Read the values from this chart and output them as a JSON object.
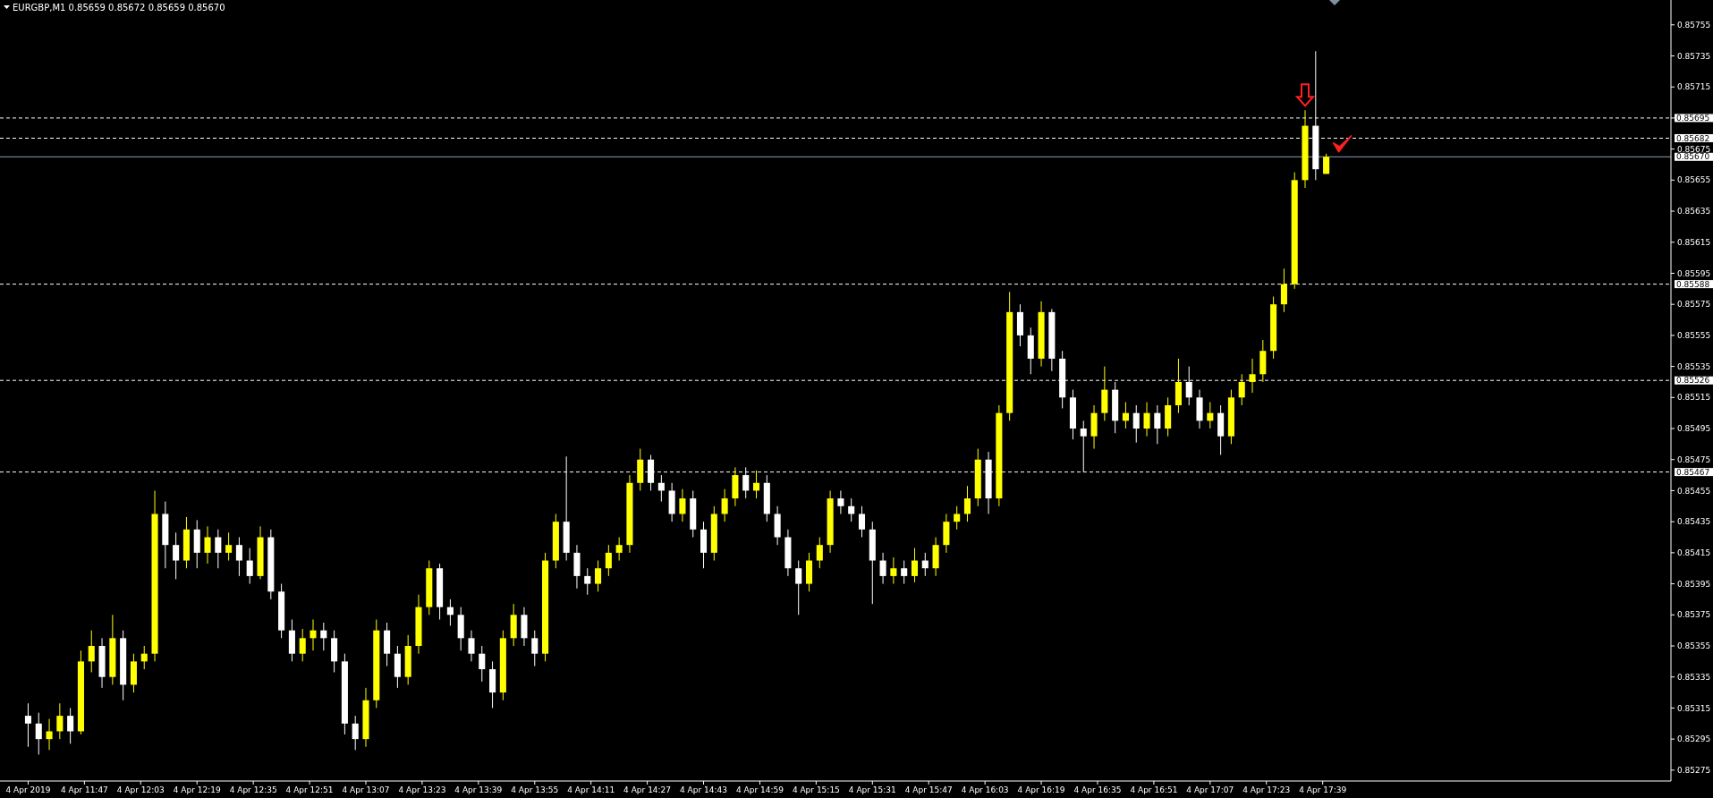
{
  "chart_data": {
    "type": "candlestick",
    "title": "EURGBP,M1 0.85659 0.85672 0.85659 0.85670",
    "x": [
      "2019-04-04T11:31",
      "2019-04-04T11:34",
      "2019-04-04T11:37",
      "2019-04-04T11:40",
      "2019-04-04T11:43",
      "2019-04-04T11:46",
      "2019-04-04T11:49",
      "2019-04-04T11:52",
      "2019-04-04T11:55",
      "2019-04-04T11:58",
      "2019-04-04T12:01",
      "2019-04-04T12:04",
      "2019-04-04T12:07",
      "2019-04-04T12:10",
      "2019-04-04T12:13",
      "2019-04-04T12:16",
      "2019-04-04T12:19",
      "2019-04-04T12:22",
      "2019-04-04T12:25",
      "2019-04-04T12:28",
      "2019-04-04T12:31",
      "2019-04-04T12:34",
      "2019-04-04T12:37",
      "2019-04-04T12:40",
      "2019-04-04T12:43",
      "2019-04-04T12:46",
      "2019-04-04T12:49",
      "2019-04-04T12:52",
      "2019-04-04T12:55",
      "2019-04-04T12:58",
      "2019-04-04T13:01",
      "2019-04-04T13:04",
      "2019-04-04T13:07",
      "2019-04-04T13:10",
      "2019-04-04T13:13",
      "2019-04-04T13:16",
      "2019-04-04T13:19",
      "2019-04-04T13:22",
      "2019-04-04T13:25",
      "2019-04-04T13:28",
      "2019-04-04T13:31",
      "2019-04-04T13:34",
      "2019-04-04T13:37",
      "2019-04-04T13:40",
      "2019-04-04T13:43",
      "2019-04-04T13:46",
      "2019-04-04T13:49",
      "2019-04-04T13:52",
      "2019-04-04T13:55",
      "2019-04-04T13:58",
      "2019-04-04T14:01",
      "2019-04-04T14:04",
      "2019-04-04T14:07",
      "2019-04-04T14:10",
      "2019-04-04T14:13",
      "2019-04-04T14:16",
      "2019-04-04T14:19",
      "2019-04-04T14:22",
      "2019-04-04T14:25",
      "2019-04-04T14:28",
      "2019-04-04T14:31",
      "2019-04-04T14:34",
      "2019-04-04T14:37",
      "2019-04-04T14:40",
      "2019-04-04T14:43",
      "2019-04-04T14:46",
      "2019-04-04T14:49",
      "2019-04-04T14:52",
      "2019-04-04T14:55",
      "2019-04-04T14:58",
      "2019-04-04T15:01",
      "2019-04-04T15:04",
      "2019-04-04T15:07",
      "2019-04-04T15:10",
      "2019-04-04T15:13",
      "2019-04-04T15:16",
      "2019-04-04T15:19",
      "2019-04-04T15:22",
      "2019-04-04T15:25",
      "2019-04-04T15:28",
      "2019-04-04T15:31",
      "2019-04-04T15:34",
      "2019-04-04T15:37",
      "2019-04-04T15:40",
      "2019-04-04T15:43",
      "2019-04-04T15:46",
      "2019-04-04T15:49",
      "2019-04-04T15:52",
      "2019-04-04T15:55",
      "2019-04-04T15:58",
      "2019-04-04T16:01",
      "2019-04-04T16:04",
      "2019-04-04T16:07",
      "2019-04-04T16:10",
      "2019-04-04T16:13",
      "2019-04-04T16:16",
      "2019-04-04T16:19",
      "2019-04-04T16:22",
      "2019-04-04T16:25",
      "2019-04-04T16:28",
      "2019-04-04T16:31",
      "2019-04-04T16:34",
      "2019-04-04T16:37",
      "2019-04-04T16:40",
      "2019-04-04T16:43",
      "2019-04-04T16:46",
      "2019-04-04T16:49",
      "2019-04-04T16:52",
      "2019-04-04T16:55",
      "2019-04-04T16:58",
      "2019-04-04T17:01",
      "2019-04-04T17:04",
      "2019-04-04T17:07",
      "2019-04-04T17:10",
      "2019-04-04T17:13",
      "2019-04-04T17:16",
      "2019-04-04T17:19",
      "2019-04-04T17:22",
      "2019-04-04T17:25",
      "2019-04-04T17:28",
      "2019-04-04T17:31",
      "2019-04-04T17:34",
      "2019-04-04T17:37",
      "2019-04-04T17:40"
    ],
    "ohlc": [
      [
        0.8531,
        0.85318,
        0.8529,
        0.85305
      ],
      [
        0.85305,
        0.85312,
        0.85285,
        0.85295
      ],
      [
        0.85295,
        0.85308,
        0.85288,
        0.853
      ],
      [
        0.853,
        0.85318,
        0.85295,
        0.8531
      ],
      [
        0.8531,
        0.85315,
        0.85292,
        0.853
      ],
      [
        0.853,
        0.85352,
        0.85298,
        0.85345
      ],
      [
        0.85345,
        0.85365,
        0.85338,
        0.85355
      ],
      [
        0.85355,
        0.8536,
        0.85328,
        0.85335
      ],
      [
        0.85335,
        0.85375,
        0.8533,
        0.8536
      ],
      [
        0.8536,
        0.85365,
        0.8532,
        0.8533
      ],
      [
        0.8533,
        0.8535,
        0.85325,
        0.85345
      ],
      [
        0.85345,
        0.85355,
        0.8534,
        0.8535
      ],
      [
        0.8535,
        0.85455,
        0.85345,
        0.8544
      ],
      [
        0.8544,
        0.85448,
        0.85405,
        0.8542
      ],
      [
        0.8542,
        0.85428,
        0.85398,
        0.8541
      ],
      [
        0.8541,
        0.85438,
        0.85405,
        0.8543
      ],
      [
        0.8543,
        0.85436,
        0.85405,
        0.85415
      ],
      [
        0.85415,
        0.85432,
        0.85408,
        0.85425
      ],
      [
        0.85425,
        0.8543,
        0.85405,
        0.85415
      ],
      [
        0.85415,
        0.85428,
        0.8541,
        0.8542
      ],
      [
        0.8542,
        0.85425,
        0.854,
        0.8541
      ],
      [
        0.8541,
        0.85418,
        0.85395,
        0.854
      ],
      [
        0.854,
        0.85432,
        0.85398,
        0.85425
      ],
      [
        0.85425,
        0.8543,
        0.85385,
        0.8539
      ],
      [
        0.8539,
        0.85395,
        0.8536,
        0.85365
      ],
      [
        0.85365,
        0.85372,
        0.85345,
        0.8535
      ],
      [
        0.8535,
        0.85366,
        0.85345,
        0.8536
      ],
      [
        0.8536,
        0.85372,
        0.85352,
        0.85365
      ],
      [
        0.85365,
        0.8537,
        0.85352,
        0.8536
      ],
      [
        0.8536,
        0.85365,
        0.85338,
        0.85345
      ],
      [
        0.85345,
        0.8535,
        0.85298,
        0.85305
      ],
      [
        0.85305,
        0.8531,
        0.85288,
        0.85295
      ],
      [
        0.85295,
        0.85328,
        0.8529,
        0.8532
      ],
      [
        0.8532,
        0.85372,
        0.85315,
        0.85365
      ],
      [
        0.85365,
        0.8537,
        0.85342,
        0.8535
      ],
      [
        0.8535,
        0.85355,
        0.85328,
        0.85335
      ],
      [
        0.85335,
        0.85362,
        0.8533,
        0.85355
      ],
      [
        0.85355,
        0.85388,
        0.8535,
        0.8538
      ],
      [
        0.8538,
        0.8541,
        0.85375,
        0.85405
      ],
      [
        0.85405,
        0.85408,
        0.85372,
        0.8538
      ],
      [
        0.8538,
        0.85385,
        0.85368,
        0.85375
      ],
      [
        0.85375,
        0.8538,
        0.85352,
        0.8536
      ],
      [
        0.8536,
        0.85365,
        0.85345,
        0.8535
      ],
      [
        0.8535,
        0.85355,
        0.85332,
        0.8534
      ],
      [
        0.8534,
        0.85345,
        0.85315,
        0.85325
      ],
      [
        0.85325,
        0.85365,
        0.8532,
        0.8536
      ],
      [
        0.8536,
        0.85382,
        0.85355,
        0.85375
      ],
      [
        0.85375,
        0.8538,
        0.85355,
        0.8536
      ],
      [
        0.8536,
        0.85365,
        0.85342,
        0.8535
      ],
      [
        0.8535,
        0.85415,
        0.85345,
        0.8541
      ],
      [
        0.8541,
        0.8544,
        0.85405,
        0.85435
      ],
      [
        0.85435,
        0.85477,
        0.8541,
        0.85415
      ],
      [
        0.85415,
        0.8542,
        0.85392,
        0.854
      ],
      [
        0.854,
        0.85405,
        0.85388,
        0.85395
      ],
      [
        0.85395,
        0.8541,
        0.8539,
        0.85405
      ],
      [
        0.85405,
        0.8542,
        0.854,
        0.85415
      ],
      [
        0.85415,
        0.85425,
        0.8541,
        0.8542
      ],
      [
        0.8542,
        0.85465,
        0.85415,
        0.8546
      ],
      [
        0.8546,
        0.85482,
        0.85455,
        0.85475
      ],
      [
        0.85475,
        0.85478,
        0.85455,
        0.8546
      ],
      [
        0.8546,
        0.85465,
        0.85448,
        0.85455
      ],
      [
        0.85455,
        0.8546,
        0.85435,
        0.8544
      ],
      [
        0.8544,
        0.85456,
        0.85435,
        0.8545
      ],
      [
        0.8545,
        0.85455,
        0.85425,
        0.8543
      ],
      [
        0.8543,
        0.85435,
        0.85405,
        0.85415
      ],
      [
        0.85415,
        0.85445,
        0.8541,
        0.8544
      ],
      [
        0.8544,
        0.85456,
        0.85435,
        0.8545
      ],
      [
        0.8545,
        0.8547,
        0.85445,
        0.85465
      ],
      [
        0.85465,
        0.8547,
        0.8545,
        0.85455
      ],
      [
        0.85455,
        0.85468,
        0.8545,
        0.8546
      ],
      [
        0.8546,
        0.85465,
        0.85435,
        0.8544
      ],
      [
        0.8544,
        0.85445,
        0.8542,
        0.85425
      ],
      [
        0.85425,
        0.8543,
        0.854,
        0.85405
      ],
      [
        0.85405,
        0.8541,
        0.85375,
        0.85395
      ],
      [
        0.85395,
        0.85415,
        0.8539,
        0.8541
      ],
      [
        0.8541,
        0.85425,
        0.85405,
        0.8542
      ],
      [
        0.8542,
        0.85455,
        0.85415,
        0.8545
      ],
      [
        0.8545,
        0.85455,
        0.8544,
        0.85445
      ],
      [
        0.85445,
        0.8545,
        0.85435,
        0.8544
      ],
      [
        0.8544,
        0.85445,
        0.85425,
        0.8543
      ],
      [
        0.8543,
        0.85435,
        0.85382,
        0.8541
      ],
      [
        0.8541,
        0.85415,
        0.85395,
        0.854
      ],
      [
        0.854,
        0.85412,
        0.85395,
        0.85405
      ],
      [
        0.85405,
        0.8541,
        0.85395,
        0.854
      ],
      [
        0.854,
        0.85418,
        0.85396,
        0.8541
      ],
      [
        0.8541,
        0.85415,
        0.854,
        0.85405
      ],
      [
        0.85405,
        0.85425,
        0.854,
        0.8542
      ],
      [
        0.8542,
        0.8544,
        0.85415,
        0.85435
      ],
      [
        0.85435,
        0.85445,
        0.8543,
        0.8544
      ],
      [
        0.8544,
        0.85458,
        0.85435,
        0.8545
      ],
      [
        0.8545,
        0.85482,
        0.85445,
        0.85475
      ],
      [
        0.85475,
        0.8548,
        0.8544,
        0.8545
      ],
      [
        0.8545,
        0.8551,
        0.85445,
        0.85505
      ],
      [
        0.85505,
        0.85583,
        0.855,
        0.8557
      ],
      [
        0.8557,
        0.85575,
        0.85548,
        0.85555
      ],
      [
        0.85555,
        0.8556,
        0.8553,
        0.8554
      ],
      [
        0.8554,
        0.85577,
        0.85535,
        0.8557
      ],
      [
        0.8557,
        0.85572,
        0.85532,
        0.8554
      ],
      [
        0.8554,
        0.85545,
        0.85508,
        0.85515
      ],
      [
        0.85515,
        0.8552,
        0.85488,
        0.85495
      ],
      [
        0.85495,
        0.855,
        0.85467,
        0.8549
      ],
      [
        0.8549,
        0.8551,
        0.85482,
        0.85505
      ],
      [
        0.85505,
        0.85535,
        0.855,
        0.8552
      ],
      [
        0.8552,
        0.85525,
        0.85492,
        0.855
      ],
      [
        0.855,
        0.85512,
        0.85495,
        0.85505
      ],
      [
        0.85505,
        0.8551,
        0.85486,
        0.85495
      ],
      [
        0.85495,
        0.85512,
        0.8549,
        0.85505
      ],
      [
        0.85505,
        0.8551,
        0.85485,
        0.85495
      ],
      [
        0.85495,
        0.85515,
        0.8549,
        0.8551
      ],
      [
        0.8551,
        0.8554,
        0.85505,
        0.85525
      ],
      [
        0.85525,
        0.85535,
        0.8551,
        0.85515
      ],
      [
        0.85515,
        0.8552,
        0.85495,
        0.855
      ],
      [
        0.855,
        0.85512,
        0.85495,
        0.85505
      ],
      [
        0.85505,
        0.8551,
        0.85478,
        0.8549
      ],
      [
        0.8549,
        0.8552,
        0.85485,
        0.85515
      ],
      [
        0.85515,
        0.8553,
        0.8551,
        0.85525
      ],
      [
        0.85525,
        0.8554,
        0.85518,
        0.8553
      ],
      [
        0.8553,
        0.85552,
        0.85525,
        0.85545
      ],
      [
        0.85545,
        0.8558,
        0.8554,
        0.85575
      ],
      [
        0.85575,
        0.85598,
        0.8557,
        0.85588
      ],
      [
        0.85588,
        0.8566,
        0.85585,
        0.85655
      ],
      [
        0.85655,
        0.857,
        0.8565,
        0.8569
      ],
      [
        0.8569,
        0.85738,
        0.85655,
        0.85662
      ],
      [
        0.85659,
        0.85672,
        0.85659,
        0.8567
      ]
    ],
    "colors": [
      "#ffffff",
      "#ffffff",
      "#ffff00",
      "#ffff00",
      "#ffffff",
      "#ffff00",
      "#ffff00",
      "#ffffff",
      "#ffff00",
      "#ffffff",
      "#ffff00",
      "#ffff00",
      "#ffff00",
      "#ffffff",
      "#ffffff",
      "#ffff00",
      "#ffffff",
      "#ffff00",
      "#ffffff",
      "#ffff00",
      "#ffffff",
      "#ffffff",
      "#ffff00",
      "#ffffff",
      "#ffffff",
      "#ffffff",
      "#ffff00",
      "#ffff00",
      "#ffffff",
      "#ffffff",
      "#ffffff",
      "#ffffff",
      "#ffff00",
      "#ffff00",
      "#ffffff",
      "#ffffff",
      "#ffff00",
      "#ffff00",
      "#ffff00",
      "#ffffff",
      "#ffffff",
      "#ffffff",
      "#ffffff",
      "#ffffff",
      "#ffffff",
      "#ffff00",
      "#ffff00",
      "#ffffff",
      "#ffffff",
      "#ffff00",
      "#ffff00",
      "#ffffff",
      "#ffffff",
      "#ffffff",
      "#ffff00",
      "#ffff00",
      "#ffff00",
      "#ffff00",
      "#ffff00",
      "#ffffff",
      "#ffffff",
      "#ffffff",
      "#ffff00",
      "#ffffff",
      "#ffffff",
      "#ffff00",
      "#ffff00",
      "#ffff00",
      "#ffffff",
      "#ffff00",
      "#ffffff",
      "#ffffff",
      "#ffffff",
      "#ffffff",
      "#ffff00",
      "#ffff00",
      "#ffff00",
      "#ffffff",
      "#ffffff",
      "#ffffff",
      "#ffffff",
      "#ffffff",
      "#ffff00",
      "#ffffff",
      "#ffff00",
      "#ffffff",
      "#ffff00",
      "#ffff00",
      "#ffff00",
      "#ffff00",
      "#ffff00",
      "#ffffff",
      "#ffff00",
      "#ffff00",
      "#ffffff",
      "#ffffff",
      "#ffff00",
      "#ffffff",
      "#ffffff",
      "#ffffff",
      "#ffffff",
      "#ffff00",
      "#ffff00",
      "#ffffff",
      "#ffff00",
      "#ffffff",
      "#ffff00",
      "#ffffff",
      "#ffff00",
      "#ffff00",
      "#ffffff",
      "#ffffff",
      "#ffff00",
      "#ffffff",
      "#ffff00",
      "#ffff00",
      "#ffff00",
      "#ffff00",
      "#ffff00",
      "#ffff00",
      "#ffff00",
      "#ffff00",
      "#ffffff",
      "#ffff00"
    ],
    "xlim": [
      "2019-04-04T11:23",
      "2019-04-04T19:18"
    ],
    "xticks": [
      {
        "value": "2019-04-04T11:31",
        "label": "4 Apr 2019"
      },
      {
        "value": "2019-04-04T11:47",
        "label": "4 Apr 11:47"
      },
      {
        "value": "2019-04-04T12:03",
        "label": "4 Apr 12:03"
      },
      {
        "value": "2019-04-04T12:19",
        "label": "4 Apr 12:19"
      },
      {
        "value": "2019-04-04T12:35",
        "label": "4 Apr 12:35"
      },
      {
        "value": "2019-04-04T12:51",
        "label": "4 Apr 12:51"
      },
      {
        "value": "2019-04-04T13:07",
        "label": "4 Apr 13:07"
      },
      {
        "value": "2019-04-04T13:23",
        "label": "4 Apr 13:23"
      },
      {
        "value": "2019-04-04T13:39",
        "label": "4 Apr 13:39"
      },
      {
        "value": "2019-04-04T13:55",
        "label": "4 Apr 13:55"
      },
      {
        "value": "2019-04-04T14:11",
        "label": "4 Apr 14:11"
      },
      {
        "value": "2019-04-04T14:27",
        "label": "4 Apr 14:27"
      },
      {
        "value": "2019-04-04T14:43",
        "label": "4 Apr 14:43"
      },
      {
        "value": "2019-04-04T14:59",
        "label": "4 Apr 14:59"
      },
      {
        "value": "2019-04-04T15:15",
        "label": "4 Apr 15:15"
      },
      {
        "value": "2019-04-04T15:31",
        "label": "4 Apr 15:31"
      },
      {
        "value": "2019-04-04T15:47",
        "label": "4 Apr 15:47"
      },
      {
        "value": "2019-04-04T16:03",
        "label": "4 Apr 16:03"
      },
      {
        "value": "2019-04-04T16:19",
        "label": "4 Apr 16:19"
      },
      {
        "value": "2019-04-04T16:35",
        "label": "4 Apr 16:35"
      },
      {
        "value": "2019-04-04T16:51",
        "label": "4 Apr 16:51"
      },
      {
        "value": "2019-04-04T17:07",
        "label": "4 Apr 17:07"
      },
      {
        "value": "2019-04-04T17:23",
        "label": "4 Apr 17:23"
      },
      {
        "value": "2019-04-04T17:39",
        "label": "4 Apr 17:39"
      }
    ],
    "ylim": [
      0.85268,
      0.85771
    ],
    "yticks": [
      0.85755,
      0.85735,
      0.85715,
      {
        "value": 0.85695,
        "label": null
      },
      0.85675,
      0.85655,
      0.85635,
      0.85615,
      0.85595,
      0.85575,
      0.85555,
      0.85535,
      0.85515,
      0.85495,
      0.85475,
      0.85455,
      0.85435,
      0.85415,
      0.85395,
      0.85375,
      0.85355,
      0.85335,
      0.85315,
      0.85295,
      0.85275
    ],
    "ref_lines": [
      {
        "axis": "y",
        "value": 0.85695,
        "label": "0.85695",
        "line_style": "dashed",
        "color": "#ffffff"
      },
      {
        "axis": "y",
        "value": 0.85682,
        "label": "0.85682",
        "line_style": "dashed",
        "color": "#ffffff"
      },
      {
        "axis": "y",
        "value": 0.8567,
        "label": "0.85670",
        "line_style": "solid",
        "color": "#8ca0b8"
      },
      {
        "axis": "y",
        "value": 0.85588,
        "label": "0.85588",
        "line_style": "dashed",
        "color": "#ffffff"
      },
      {
        "axis": "y",
        "value": 0.85526,
        "label": "0.85526",
        "line_style": "dashed",
        "color": "#ffffff"
      },
      {
        "axis": "y",
        "value": 0.85467,
        "label": "0.85467",
        "line_style": "dashed",
        "color": "#ffffff"
      }
    ]
  }
}
